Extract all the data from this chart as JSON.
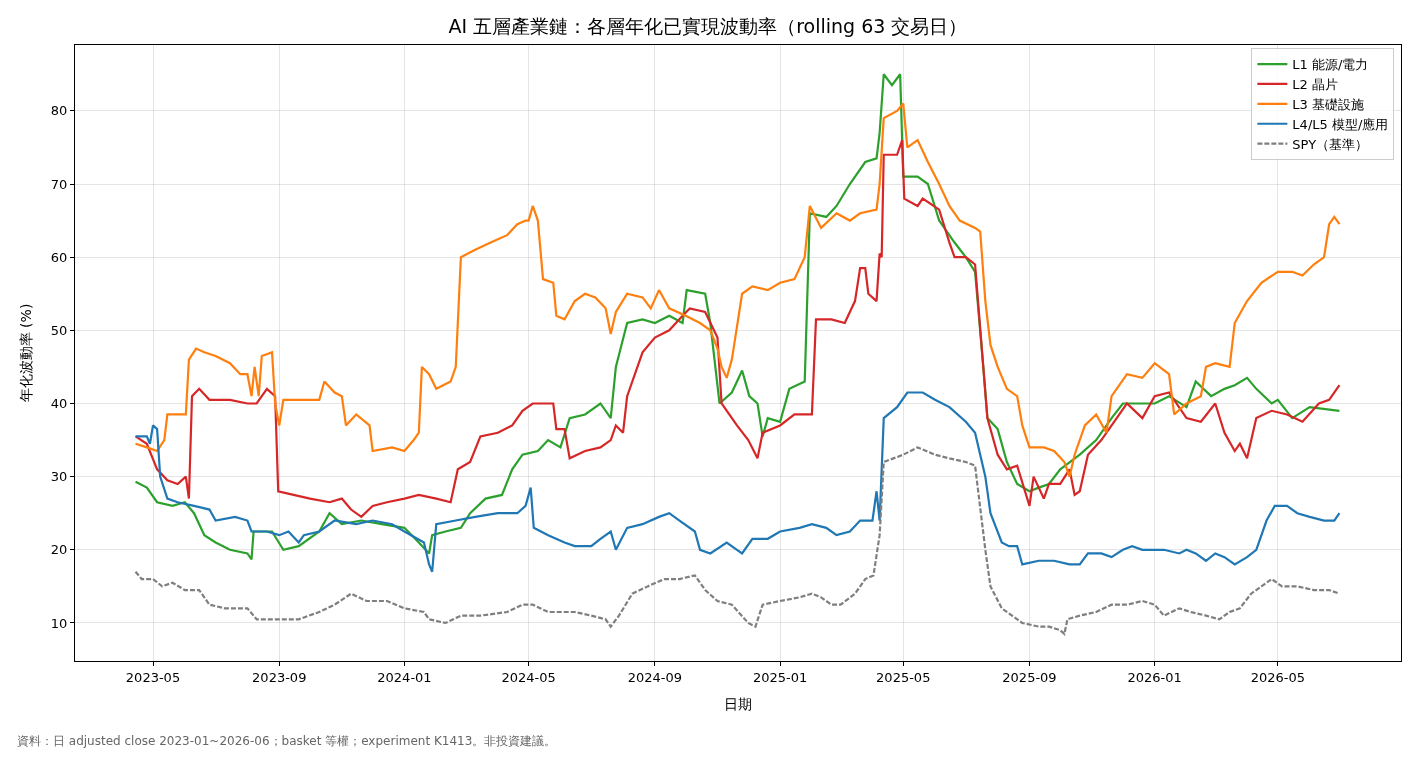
{
  "chart_data": {
    "type": "line",
    "title": "AI 五層產業鏈：各層年化已實現波動率（rolling 63 交易日）",
    "xlabel": "日期",
    "ylabel": "年化波動率 (%)",
    "annotations": [
      "資料：日 adjusted close 2023-01~2026-06；basket 等權；experiment K1413。非投資建議。"
    ],
    "xlim": [
      "2023-02-14",
      "2026-08-29"
    ],
    "xticks": [
      {
        "value": "2023-05-01",
        "label": "2023-05"
      },
      {
        "value": "2023-09-01",
        "label": "2023-09"
      },
      {
        "value": "2024-01-01",
        "label": "2024-01"
      },
      {
        "value": "2024-05-01",
        "label": "2024-05"
      },
      {
        "value": "2024-09-01",
        "label": "2024-09"
      },
      {
        "value": "2025-01-01",
        "label": "2025-01"
      },
      {
        "value": "2025-05-01",
        "label": "2025-05"
      },
      {
        "value": "2025-09-01",
        "label": "2025-09"
      },
      {
        "value": "2026-01-01",
        "label": "2026-01"
      },
      {
        "value": "2026-05-01",
        "label": "2026-05"
      }
    ],
    "ylim": [
      4.8,
      89
    ],
    "yticks": [
      10,
      20,
      30,
      40,
      50,
      60,
      70,
      80
    ],
    "grid": true,
    "legend": "top right",
    "series": [
      {
        "name": "L1 能源/電力",
        "color": "#2ca02c",
        "x": [
          "2023-04-14",
          "2023-04-25",
          "2023-05-05",
          "2023-05-20",
          "2023-06-01",
          "2023-06-10",
          "2023-06-20",
          "2023-07-01",
          "2023-07-15",
          "2023-08-01",
          "2023-08-05",
          "2023-08-07",
          "2023-08-25",
          "2023-09-05",
          "2023-09-20",
          "2023-10-10",
          "2023-10-20",
          "2023-11-01",
          "2023-11-20",
          "2023-12-10",
          "2024-01-01",
          "2024-01-15",
          "2024-01-25",
          "2024-01-28",
          "2024-02-10",
          "2024-02-25",
          "2024-03-05",
          "2024-03-20",
          "2024-04-05",
          "2024-04-15",
          "2024-04-25",
          "2024-05-10",
          "2024-05-20",
          "2024-06-01",
          "2024-06-10",
          "2024-06-25",
          "2024-07-10",
          "2024-07-20",
          "2024-07-25",
          "2024-08-05",
          "2024-08-20",
          "2024-09-01",
          "2024-09-15",
          "2024-09-28",
          "2024-10-02",
          "2024-10-20",
          "2024-10-25",
          "2024-11-03",
          "2024-11-15",
          "2024-11-25",
          "2024-12-02",
          "2024-12-10",
          "2024-12-15",
          "2024-12-20",
          "2025-01-01",
          "2025-01-10",
          "2025-01-25",
          "2025-01-30",
          "2025-02-15",
          "2025-02-25",
          "2025-03-10",
          "2025-03-25",
          "2025-04-05",
          "2025-04-08",
          "2025-04-12",
          "2025-04-20",
          "2025-04-28",
          "2025-05-01",
          "2025-05-15",
          "2025-05-25",
          "2025-06-05",
          "2025-06-20",
          "2025-07-01",
          "2025-07-10",
          "2025-07-18",
          "2025-07-22",
          "2025-08-01",
          "2025-08-10",
          "2025-08-20",
          "2025-09-01",
          "2025-09-10",
          "2025-09-20",
          "2025-10-01",
          "2025-10-20",
          "2025-11-05",
          "2025-11-20",
          "2025-12-01",
          "2025-12-20",
          "2026-01-01",
          "2026-01-15",
          "2026-02-01",
          "2026-02-10",
          "2026-02-25",
          "2026-03-10",
          "2026-03-20",
          "2026-04-01",
          "2026-04-10",
          "2026-04-25",
          "2026-05-01",
          "2026-05-15",
          "2026-06-01",
          "2026-06-30"
        ],
        "values": [
          29.3,
          28.5,
          26.5,
          26,
          26.5,
          25,
          22,
          21,
          20,
          19.5,
          18.7,
          22.5,
          22.5,
          20,
          20.5,
          22.5,
          25,
          23.5,
          24,
          23.5,
          23,
          21,
          19.5,
          22,
          22.5,
          23,
          25,
          27,
          27.5,
          31,
          33,
          33.5,
          35,
          34,
          38,
          38.5,
          40,
          38,
          45,
          51,
          51.5,
          51,
          52,
          51,
          55.5,
          55,
          51,
          40,
          41.5,
          44.5,
          41,
          40,
          35.5,
          38,
          37.5,
          42,
          43,
          66,
          65.5,
          67,
          70,
          73,
          73.5,
          77,
          85,
          83.5,
          85,
          71,
          71,
          70,
          65,
          62,
          60,
          58,
          45,
          38,
          36.5,
          32,
          29,
          28,
          28.5,
          29,
          31,
          33,
          35,
          38,
          40,
          40,
          40,
          41,
          39.5,
          43,
          41,
          42,
          42.5,
          43.5,
          42,
          40,
          40.5,
          38,
          39.5,
          39
        ]
      },
      {
        "name": "L2 晶片",
        "color": "#d62728",
        "x": [
          "2023-04-14",
          "2023-04-25",
          "2023-05-05",
          "2023-05-15",
          "2023-05-25",
          "2023-06-02",
          "2023-06-05",
          "2023-06-08",
          "2023-06-15",
          "2023-06-25",
          "2023-07-15",
          "2023-08-01",
          "2023-08-10",
          "2023-08-20",
          "2023-08-28",
          "2023-08-31",
          "2023-09-15",
          "2023-10-01",
          "2023-10-20",
          "2023-11-01",
          "2023-11-10",
          "2023-11-20",
          "2023-12-01",
          "2023-12-15",
          "2024-01-01",
          "2024-01-15",
          "2024-02-01",
          "2024-02-15",
          "2024-02-22",
          "2024-03-05",
          "2024-03-15",
          "2024-04-01",
          "2024-04-15",
          "2024-04-25",
          "2024-05-05",
          "2024-05-25",
          "2024-05-28",
          "2024-06-05",
          "2024-06-10",
          "2024-06-25",
          "2024-07-10",
          "2024-07-20",
          "2024-07-25",
          "2024-08-01",
          "2024-08-05",
          "2024-08-20",
          "2024-09-01",
          "2024-09-15",
          "2024-09-28",
          "2024-10-05",
          "2024-10-20",
          "2024-11-01",
          "2024-11-05",
          "2024-11-20",
          "2024-12-01",
          "2024-12-10",
          "2024-12-15",
          "2025-01-01",
          "2025-01-15",
          "2025-02-01",
          "2025-02-05",
          "2025-02-20",
          "2025-03-05",
          "2025-03-15",
          "2025-03-20",
          "2025-03-25",
          "2025-03-28",
          "2025-04-05",
          "2025-04-08",
          "2025-04-10",
          "2025-04-12",
          "2025-04-25",
          "2025-04-30",
          "2025-05-02",
          "2025-05-15",
          "2025-05-20",
          "2025-06-05",
          "2025-06-15",
          "2025-06-20",
          "2025-07-01",
          "2025-07-10",
          "2025-07-22",
          "2025-08-01",
          "2025-08-10",
          "2025-08-20",
          "2025-09-01",
          "2025-09-05",
          "2025-09-15",
          "2025-09-20",
          "2025-10-01",
          "2025-10-10",
          "2025-10-15",
          "2025-10-20",
          "2025-10-28",
          "2025-11-10",
          "2025-11-25",
          "2025-12-05",
          "2025-12-20",
          "2026-01-01",
          "2026-01-15",
          "2026-02-01",
          "2026-02-15",
          "2026-03-01",
          "2026-03-10",
          "2026-03-20",
          "2026-03-25",
          "2026-04-01",
          "2026-04-10",
          "2026-04-25",
          "2026-05-10",
          "2026-05-25",
          "2026-06-10",
          "2026-06-20",
          "2026-06-30"
        ],
        "values": [
          35.5,
          34.5,
          31,
          29.5,
          29,
          30,
          27,
          41,
          42,
          40.5,
          40.5,
          40,
          40,
          42,
          41,
          28,
          27.5,
          27,
          26.5,
          27,
          25.5,
          24.5,
          26,
          26.5,
          27,
          27.5,
          27,
          26.5,
          31,
          32,
          35.5,
          36,
          37,
          39,
          40,
          40,
          36.5,
          36.5,
          32.5,
          33.5,
          34,
          35,
          37,
          36,
          41,
          47,
          49,
          50,
          52,
          53,
          52.5,
          49,
          40,
          37,
          35,
          32.5,
          36,
          37,
          38.5,
          38.5,
          51.5,
          51.5,
          51,
          54,
          58.5,
          58.5,
          55,
          54,
          60.5,
          60,
          74,
          74,
          76,
          68,
          67,
          68,
          66.5,
          62,
          60,
          60,
          59,
          38,
          33,
          31,
          31.5,
          26,
          30,
          27,
          29,
          29,
          31,
          27.5,
          28,
          33,
          35,
          38,
          40,
          38,
          41,
          41.5,
          38,
          37.5,
          40,
          36,
          33.5,
          34.5,
          32.5,
          38,
          39,
          38.5,
          37.5,
          40,
          40.5,
          42.5
        ]
      },
      {
        "name": "L3 基礎設施",
        "color": "#ff7f0e",
        "x": [
          "2023-04-14",
          "2023-04-25",
          "2023-05-05",
          "2023-05-12",
          "2023-05-15",
          "2023-05-28",
          "2023-06-02",
          "2023-06-05",
          "2023-06-12",
          "2023-06-20",
          "2023-07-01",
          "2023-07-15",
          "2023-07-25",
          "2023-08-01",
          "2023-08-05",
          "2023-08-08",
          "2023-08-12",
          "2023-08-15",
          "2023-08-25",
          "2023-08-28",
          "2023-09-01",
          "2023-09-05",
          "2023-09-20",
          "2023-10-10",
          "2023-10-15",
          "2023-10-25",
          "2023-11-01",
          "2023-11-05",
          "2023-11-15",
          "2023-11-28",
          "2023-12-01",
          "2023-12-20",
          "2024-01-01",
          "2024-01-10",
          "2024-01-15",
          "2024-01-18",
          "2024-01-25",
          "2024-02-01",
          "2024-02-15",
          "2024-02-20",
          "2024-02-25",
          "2024-03-10",
          "2024-03-25",
          "2024-04-10",
          "2024-04-20",
          "2024-04-28",
          "2024-05-01",
          "2024-05-05",
          "2024-05-10",
          "2024-05-15",
          "2024-05-25",
          "2024-05-28",
          "2024-06-05",
          "2024-06-15",
          "2024-06-25",
          "2024-07-05",
          "2024-07-15",
          "2024-07-20",
          "2024-07-25",
          "2024-08-05",
          "2024-08-20",
          "2024-08-28",
          "2024-09-05",
          "2024-09-15",
          "2024-10-01",
          "2024-10-15",
          "2024-10-25",
          "2024-11-01",
          "2024-11-05",
          "2024-11-10",
          "2024-11-15",
          "2024-11-25",
          "2024-12-05",
          "2024-12-20",
          "2025-01-01",
          "2025-01-15",
          "2025-01-25",
          "2025-01-30",
          "2025-02-10",
          "2025-02-25",
          "2025-03-10",
          "2025-03-20",
          "2025-04-05",
          "2025-04-08",
          "2025-04-12",
          "2025-04-25",
          "2025-05-01",
          "2025-05-05",
          "2025-05-15",
          "2025-05-25",
          "2025-06-05",
          "2025-06-15",
          "2025-06-25",
          "2025-07-10",
          "2025-07-15",
          "2025-07-20",
          "2025-07-25",
          "2025-08-01",
          "2025-08-10",
          "2025-08-20",
          "2025-08-25",
          "2025-09-01",
          "2025-09-15",
          "2025-09-25",
          "2025-10-05",
          "2025-10-10",
          "2025-10-15",
          "2025-10-25",
          "2025-11-05",
          "2025-11-15",
          "2025-11-20",
          "2025-12-05",
          "2025-12-20",
          "2026-01-01",
          "2026-01-15",
          "2026-01-20",
          "2026-02-01",
          "2026-02-15",
          "2026-02-20",
          "2026-03-01",
          "2026-03-15",
          "2026-03-20",
          "2026-04-01",
          "2026-04-15",
          "2026-05-01",
          "2026-05-15",
          "2026-05-25",
          "2026-06-05",
          "2026-06-15",
          "2026-06-20",
          "2026-06-25",
          "2026-06-30"
        ],
        "values": [
          34.5,
          34,
          33.5,
          35,
          38.5,
          38.5,
          38.5,
          46,
          47.5,
          47,
          46.5,
          45.5,
          44,
          44,
          41,
          45,
          41,
          46.5,
          47,
          40,
          37,
          40.5,
          40.5,
          40.5,
          43,
          41.5,
          41,
          37,
          38.5,
          37,
          33.5,
          34,
          33.5,
          35,
          36,
          45,
          44,
          42,
          43,
          45,
          60,
          61,
          62,
          63,
          64.5,
          65,
          65,
          67,
          65,
          57,
          56.5,
          52,
          51.5,
          54,
          55,
          54.5,
          53,
          49.5,
          52.5,
          55,
          54.5,
          53,
          55.5,
          53,
          52,
          51,
          50,
          47.5,
          45,
          43.5,
          46,
          55,
          56,
          55.5,
          56.5,
          57,
          60,
          67,
          64,
          66,
          65,
          66,
          66.5,
          70,
          79,
          80,
          81,
          75,
          76,
          73,
          70,
          67,
          65,
          64,
          63.5,
          54,
          48,
          45,
          42,
          41,
          37,
          34,
          34,
          33.5,
          32,
          30,
          33,
          37,
          38.5,
          36,
          41,
          44,
          43.5,
          45.5,
          44,
          38.5,
          40,
          41,
          45,
          45.5,
          45,
          51,
          54,
          56.5,
          58,
          58,
          57.5,
          59,
          60,
          64.5,
          65.5,
          64.5
        ]
      },
      {
        "name": "L4/L5 模型/應用",
        "color": "#1f77b4",
        "x": [
          "2023-04-14",
          "2023-04-25",
          "2023-04-28",
          "2023-05-01",
          "2023-05-05",
          "2023-05-08",
          "2023-05-15",
          "2023-05-25",
          "2023-06-10",
          "2023-06-25",
          "2023-07-01",
          "2023-07-20",
          "2023-08-01",
          "2023-08-05",
          "2023-08-20",
          "2023-09-01",
          "2023-09-10",
          "2023-09-20",
          "2023-09-25",
          "2023-10-10",
          "2023-10-25",
          "2023-11-15",
          "2023-12-01",
          "2023-12-20",
          "2024-01-01",
          "2024-01-20",
          "2024-01-25",
          "2024-01-28",
          "2024-02-01",
          "2024-02-20",
          "2024-03-10",
          "2024-04-01",
          "2024-04-20",
          "2024-04-28",
          "2024-05-03",
          "2024-05-06",
          "2024-05-20",
          "2024-06-05",
          "2024-06-15",
          "2024-07-01",
          "2024-07-10",
          "2024-07-20",
          "2024-07-25",
          "2024-08-05",
          "2024-08-20",
          "2024-09-05",
          "2024-09-15",
          "2024-09-25",
          "2024-10-10",
          "2024-10-15",
          "2024-10-25",
          "2024-11-10",
          "2024-11-20",
          "2024-11-25",
          "2024-12-05",
          "2024-12-20",
          "2025-01-01",
          "2025-01-20",
          "2025-02-01",
          "2025-02-15",
          "2025-02-25",
          "2025-03-10",
          "2025-03-20",
          "2025-04-01",
          "2025-04-05",
          "2025-04-08",
          "2025-04-12",
          "2025-04-25",
          "2025-05-05",
          "2025-05-20",
          "2025-06-01",
          "2025-06-15",
          "2025-07-01",
          "2025-07-10",
          "2025-07-20",
          "2025-07-25",
          "2025-08-05",
          "2025-08-12",
          "2025-08-20",
          "2025-08-25",
          "2025-09-10",
          "2025-09-25",
          "2025-10-10",
          "2025-10-20",
          "2025-10-28",
          "2025-11-10",
          "2025-11-20",
          "2025-12-01",
          "2025-12-10",
          "2025-12-20",
          "2026-01-10",
          "2026-01-25",
          "2026-02-01",
          "2026-02-10",
          "2026-02-20",
          "2026-03-01",
          "2026-03-10",
          "2026-03-20",
          "2026-04-01",
          "2026-04-10",
          "2026-04-20",
          "2026-04-28",
          "2026-05-10",
          "2026-05-20",
          "2026-06-01",
          "2026-06-15",
          "2026-06-25",
          "2026-06-30"
        ],
        "values": [
          35.5,
          35.5,
          34.5,
          37,
          36.5,
          30,
          27,
          26.5,
          26,
          25.5,
          24,
          24.5,
          24,
          22.5,
          22.5,
          22,
          22.5,
          21,
          22,
          22.5,
          24,
          23.5,
          24,
          23.5,
          22.5,
          21,
          18,
          17,
          23.5,
          24,
          24.5,
          25,
          25,
          26,
          28.5,
          23,
          22,
          21,
          20.5,
          20.5,
          21.5,
          22.5,
          20,
          23,
          23.5,
          24.5,
          25,
          24,
          22.5,
          20,
          19.5,
          21,
          20,
          19.5,
          21.5,
          21.5,
          22.5,
          23,
          23.5,
          23,
          22,
          22.5,
          24,
          24,
          28,
          24,
          38,
          39.5,
          41.5,
          41.5,
          40.5,
          39.5,
          37.5,
          36,
          30,
          25,
          21,
          20.5,
          20.5,
          18,
          18.5,
          18.5,
          18,
          18,
          19.5,
          19.5,
          19,
          20,
          20.5,
          20,
          20,
          19.5,
          20,
          19.5,
          18.5,
          19.5,
          19,
          18,
          19,
          20,
          24,
          26,
          26,
          25,
          24.5,
          24,
          24,
          25
        ]
      },
      {
        "name": "SPY（基準）",
        "color": "#7f7f7f",
        "line_style": "dashed",
        "x": [
          "2023-04-14",
          "2023-04-20",
          "2023-05-01",
          "2023-05-10",
          "2023-05-20",
          "2023-06-01",
          "2023-06-15",
          "2023-06-25",
          "2023-07-10",
          "2023-08-01",
          "2023-08-10",
          "2023-09-01",
          "2023-09-20",
          "2023-10-10",
          "2023-10-25",
          "2023-11-10",
          "2023-11-25",
          "2023-12-15",
          "2024-01-01",
          "2024-01-20",
          "2024-01-25",
          "2024-02-10",
          "2024-02-25",
          "2024-03-15",
          "2024-04-10",
          "2024-04-25",
          "2024-05-05",
          "2024-05-20",
          "2024-06-15",
          "2024-07-01",
          "2024-07-15",
          "2024-07-20",
          "2024-07-28",
          "2024-08-10",
          "2024-08-25",
          "2024-09-10",
          "2024-09-25",
          "2024-10-10",
          "2024-10-20",
          "2024-11-01",
          "2024-11-15",
          "2024-12-01",
          "2024-12-08",
          "2024-12-15",
          "2025-01-01",
          "2025-01-20",
          "2025-02-01",
          "2025-02-10",
          "2025-02-20",
          "2025-03-01",
          "2025-03-15",
          "2025-03-25",
          "2025-04-02",
          "2025-04-08",
          "2025-04-12",
          "2025-05-01",
          "2025-05-15",
          "2025-06-01",
          "2025-06-15",
          "2025-07-01",
          "2025-07-10",
          "2025-07-20",
          "2025-07-25",
          "2025-08-05",
          "2025-08-15",
          "2025-08-25",
          "2025-09-10",
          "2025-09-20",
          "2025-10-01",
          "2025-10-05",
          "2025-10-08",
          "2025-10-20",
          "2025-11-05",
          "2025-11-20",
          "2025-12-05",
          "2025-12-20",
          "2026-01-01",
          "2026-01-10",
          "2026-01-25",
          "2026-02-05",
          "2026-02-20",
          "2026-03-05",
          "2026-03-15",
          "2026-03-25",
          "2026-04-05",
          "2026-04-15",
          "2026-04-25",
          "2026-05-05",
          "2026-05-20",
          "2026-06-05",
          "2026-06-20",
          "2026-06-30"
        ],
        "values": [
          17,
          16,
          16,
          15,
          15.5,
          14.5,
          14.5,
          12.5,
          12,
          12,
          10.5,
          10.5,
          10.5,
          11.5,
          12.5,
          14,
          13,
          13,
          12,
          11.5,
          10.5,
          10,
          11,
          11,
          11.5,
          12.5,
          12.5,
          11.5,
          11.5,
          11,
          10.5,
          9.5,
          11,
          14,
          15,
          16,
          16,
          16.5,
          14.5,
          13,
          12.5,
          10,
          9.5,
          12.5,
          13,
          13.5,
          14,
          13.5,
          12.5,
          12.5,
          14,
          16,
          16.5,
          22,
          32,
          33,
          34,
          33,
          32.5,
          32,
          31.5,
          20,
          15,
          12,
          11,
          10,
          9.5,
          9.5,
          9,
          8.5,
          10.5,
          11,
          11.5,
          12.5,
          12.5,
          13,
          12.5,
          11,
          12,
          11.5,
          11,
          10.5,
          11.5,
          12,
          14,
          15,
          16,
          15,
          15,
          14.5,
          14.5,
          14
        ]
      }
    ]
  }
}
